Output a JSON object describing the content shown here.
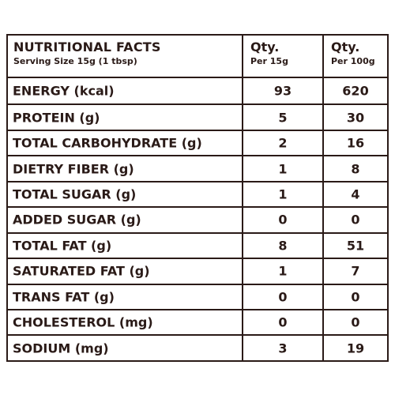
{
  "header": {
    "title": "NUTRITIONAL FACTS",
    "serving": "Serving Size 15g (1 tbsp)",
    "col1_title": "Qty.",
    "col1_sub": "Per 15g",
    "col2_title": "Qty.",
    "col2_sub": "Per 100g"
  },
  "rows": [
    {
      "label": "ENERGY (kcal)",
      "per15": "93",
      "per100": "620"
    },
    {
      "label": "PROTEIN (g)",
      "per15": "5",
      "per100": "30"
    },
    {
      "label": "TOTAL CARBOHYDRATE (g)",
      "per15": "2",
      "per100": "16"
    },
    {
      "label": "DIETRY FIBER (g)",
      "per15": "1",
      "per100": "8"
    },
    {
      "label": "TOTAL SUGAR (g)",
      "per15": "1",
      "per100": "4"
    },
    {
      "label": "ADDED SUGAR (g)",
      "per15": "0",
      "per100": "0"
    },
    {
      "label": "TOTAL FAT (g)",
      "per15": "8",
      "per100": "51"
    },
    {
      "label": "SATURATED FAT (g)",
      "per15": "1",
      "per100": "7"
    },
    {
      "label": "TRANS FAT (g)",
      "per15": "0",
      "per100": "0"
    },
    {
      "label": "CHOLESTEROL (mg)",
      "per15": "0",
      "per100": "0"
    },
    {
      "label": "SODIUM (mg)",
      "per15": "3",
      "per100": "19"
    }
  ],
  "colors": {
    "ink": "#2a1a17",
    "background": "#ffffff"
  }
}
